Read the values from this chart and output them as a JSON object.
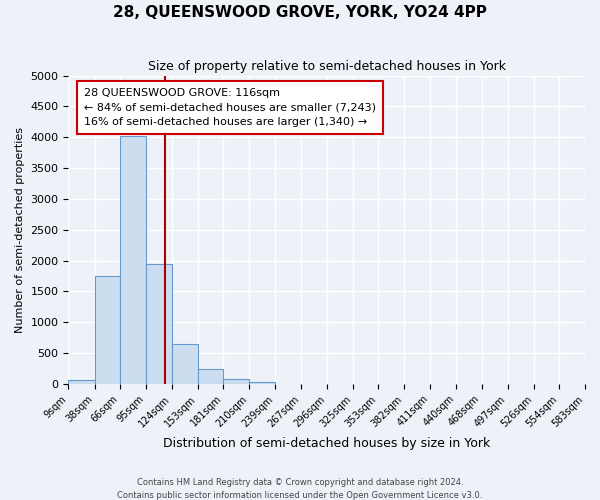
{
  "title": "28, QUEENSWOOD GROVE, YORK, YO24 4PP",
  "subtitle": "Size of property relative to semi-detached houses in York",
  "xlabel": "Distribution of semi-detached houses by size in York",
  "ylabel": "Number of semi-detached properties",
  "bar_color": "#ccddef",
  "bar_edge_color": "#6699cc",
  "background_color": "#eef2f8",
  "grid_color": "#ffffff",
  "annotation_box_color": "#ffffff",
  "annotation_box_edge": "#cc0000",
  "red_line_color": "#aa0000",
  "property_line_x": 116,
  "bin_edges": [
    9,
    38,
    66,
    95,
    124,
    153,
    181,
    210,
    239,
    267,
    296,
    325,
    353,
    382,
    411,
    440,
    468,
    497,
    526,
    554,
    583
  ],
  "bin_heights": [
    60,
    1750,
    4020,
    1940,
    650,
    240,
    80,
    30,
    0,
    0,
    0,
    0,
    0,
    0,
    0,
    0,
    0,
    0,
    0,
    0
  ],
  "ylim": [
    0,
    5000
  ],
  "yticks": [
    0,
    500,
    1000,
    1500,
    2000,
    2500,
    3000,
    3500,
    4000,
    4500,
    5000
  ],
  "annotation_title": "28 QUEENSWOOD GROVE: 116sqm",
  "annotation_line1": "← 84% of semi-detached houses are smaller (7,243)",
  "annotation_line2": "16% of semi-detached houses are larger (1,340) →",
  "footer_line1": "Contains HM Land Registry data © Crown copyright and database right 2024.",
  "footer_line2": "Contains public sector information licensed under the Open Government Licence v3.0."
}
